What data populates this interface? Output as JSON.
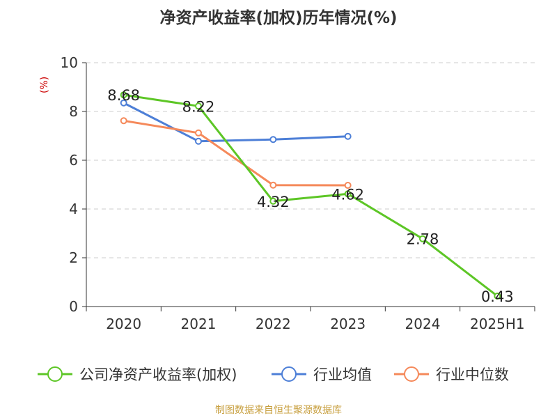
{
  "chart_data": {
    "type": "line",
    "title": "净资产收益率(加权)历年情况(%)",
    "ylabel": "(%)",
    "categories": [
      "2020",
      "2021",
      "2022",
      "2023",
      "2024",
      "2025H1"
    ],
    "ylim": [
      0,
      10
    ],
    "yticks": [
      0,
      2,
      4,
      6,
      8,
      10
    ],
    "grid": "horizontal dashed",
    "legend_position": "bottom",
    "series": [
      {
        "name": "公司净资产收益率(加权)",
        "color": "#5dc626",
        "values": [
          8.68,
          8.22,
          4.32,
          4.62,
          2.78,
          0.43
        ],
        "labels": [
          "8.68",
          "8.22",
          "4.32",
          "4.62",
          "2.78",
          "0.43"
        ]
      },
      {
        "name": "行业均值",
        "color": "#4d7fd7",
        "values": [
          8.35,
          6.78,
          6.85,
          6.98,
          null,
          null
        ]
      },
      {
        "name": "行业中位数",
        "color": "#f5895a",
        "values": [
          7.62,
          7.12,
          4.98,
          4.97,
          null,
          null
        ]
      }
    ]
  },
  "source": "制图数据来自恒生聚源数据库"
}
